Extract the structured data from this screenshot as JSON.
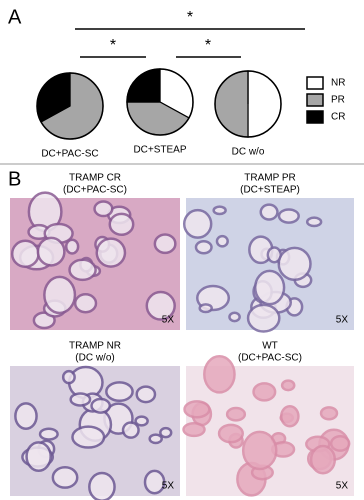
{
  "panel_a": {
    "label": "A",
    "significance": [
      "*",
      "*",
      "*"
    ]
  },
  "chart_data": {
    "type": "pie",
    "categories": [
      "NR",
      "PR",
      "CR"
    ],
    "colors": [
      "#ffffff",
      "#a6a6a6",
      "#000000"
    ],
    "series": [
      {
        "name": "DC+PAC-SC",
        "values": [
          0,
          67,
          33
        ]
      },
      {
        "name": "DC+STEAP",
        "values": [
          33,
          42,
          25
        ]
      },
      {
        "name": "DC w/o",
        "values": [
          50,
          50,
          0
        ]
      }
    ]
  },
  "panel_b": {
    "label": "B",
    "images": [
      {
        "title": "TRAMP CR",
        "subtitle": "(DC+PAC-SC)",
        "magnification": "5X"
      },
      {
        "title": "TRAMP PR",
        "subtitle": "(DC+STEAP)",
        "magnification": "5X"
      },
      {
        "title": "TRAMP NR",
        "subtitle": "(DC w/o)",
        "magnification": "5X"
      },
      {
        "title": "WT",
        "subtitle": "(DC+PAC-SC)",
        "magnification": "5X"
      }
    ]
  }
}
